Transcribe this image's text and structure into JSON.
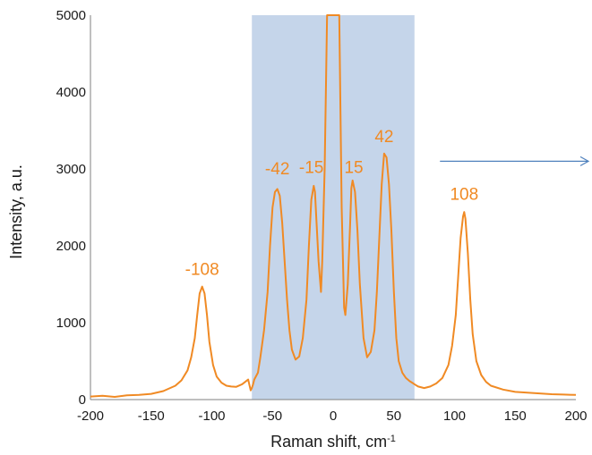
{
  "chart_data": {
    "type": "line",
    "title": "",
    "xlabel": "Raman shift, cm",
    "xlabel_superscript": "-1",
    "ylabel": "Intensity, a.u.",
    "xlim": [
      -200,
      200
    ],
    "ylim": [
      0,
      5000
    ],
    "xticks": [
      -200,
      -150,
      -100,
      -50,
      0,
      50,
      100,
      150,
      200
    ],
    "yticks": [
      0,
      1000,
      2000,
      3000,
      4000,
      5000
    ],
    "grid": false,
    "colors": {
      "series": "#f08a24",
      "highlight_band": "#c5d5ea",
      "arrow": "#4f81bd",
      "text": "#1a1a1a"
    },
    "highlight_band": {
      "x_from": -67,
      "x_to": 67
    },
    "arrow": {
      "x_from": 88,
      "x_to": 200,
      "y": 3100
    },
    "peak_labels": [
      {
        "text": "-108",
        "x": -108,
        "y": 1620
      },
      {
        "text": "-42",
        "x": -46,
        "y": 2930
      },
      {
        "text": "-15",
        "x": -18,
        "y": 2950
      },
      {
        "text": "15",
        "x": 17,
        "y": 2950
      },
      {
        "text": "42",
        "x": 42,
        "y": 3350
      },
      {
        "text": "108",
        "x": 108,
        "y": 2600
      }
    ],
    "series": [
      {
        "x": [
          -200,
          -190,
          -180,
          -170,
          -160,
          -150,
          -140,
          -130,
          -125,
          -120,
          -117,
          -114,
          -112,
          -110,
          -108,
          -106,
          -104,
          -102,
          -99,
          -96,
          -92,
          -88,
          -84,
          -80,
          -75,
          -70,
          -68,
          -67,
          -66,
          -65,
          -62,
          -60,
          -57,
          -54,
          -52,
          -50,
          -48,
          -46,
          -44,
          -42,
          -40,
          -38,
          -36,
          -34,
          -31,
          -28,
          -25,
          -22,
          -20,
          -18,
          -16,
          -15,
          -14,
          -12,
          -10,
          -9,
          -7,
          -5,
          -3,
          -1,
          0,
          1,
          3,
          5,
          7,
          9,
          10,
          12,
          14,
          15,
          16,
          18,
          20,
          22,
          25,
          28,
          31,
          34,
          36,
          38,
          40,
          42,
          44,
          46,
          48,
          50,
          52,
          54,
          57,
          60,
          63,
          66,
          68,
          70,
          75,
          80,
          85,
          90,
          95,
          98,
          101,
          103,
          105,
          107,
          108,
          109,
          111,
          113,
          115,
          118,
          122,
          126,
          130,
          140,
          150,
          160,
          170,
          180,
          190,
          200
        ],
        "y": [
          40,
          50,
          35,
          55,
          60,
          75,
          110,
          180,
          250,
          380,
          550,
          800,
          1100,
          1380,
          1470,
          1380,
          1100,
          750,
          450,
          300,
          220,
          180,
          170,
          165,
          200,
          260,
          120,
          150,
          200,
          260,
          350,
          550,
          900,
          1400,
          2000,
          2500,
          2700,
          2740,
          2650,
          2300,
          1800,
          1300,
          900,
          650,
          520,
          560,
          800,
          1300,
          2000,
          2600,
          2780,
          2700,
          2400,
          1800,
          1400,
          1800,
          3000,
          5000,
          5000,
          5000,
          5000,
          5000,
          5000,
          5000,
          2500,
          1200,
          1100,
          1500,
          2300,
          2750,
          2850,
          2700,
          2200,
          1500,
          800,
          550,
          620,
          900,
          1400,
          2100,
          2800,
          3200,
          3150,
          2800,
          2200,
          1400,
          800,
          500,
          350,
          280,
          240,
          210,
          190,
          170,
          150,
          170,
          210,
          280,
          450,
          700,
          1100,
          1600,
          2100,
          2380,
          2440,
          2350,
          1900,
          1300,
          850,
          500,
          320,
          230,
          180,
          130,
          100,
          90,
          80,
          70,
          65,
          60
        ]
      }
    ]
  }
}
